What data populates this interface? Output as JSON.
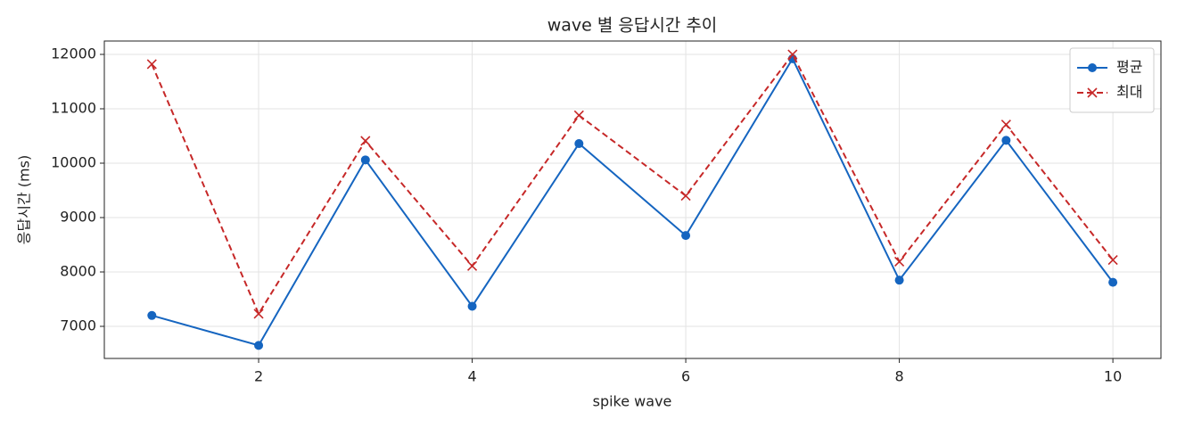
{
  "chart_data": {
    "type": "line",
    "title": "wave 별 응답시간 추이",
    "x_label": "spike wave",
    "y_label": "응답시간 (ms)",
    "x": [
      1,
      2,
      3,
      4,
      5,
      6,
      7,
      8,
      9,
      10
    ],
    "series": [
      {
        "name": "평균",
        "color": "#1565c0",
        "marker": "o",
        "linestyle": "solid",
        "values": [
          7200,
          6650,
          10060,
          7370,
          10360,
          8670,
          11920,
          7850,
          10420,
          7810
        ]
      },
      {
        "name": "최대",
        "color": "#c62828",
        "marker": "x",
        "linestyle": "dashed",
        "values": [
          11820,
          7230,
          10410,
          8110,
          10880,
          9400,
          12000,
          8190,
          10710,
          8220
        ]
      }
    ],
    "xlim": [
      0.555,
      10.45
    ],
    "ylim": [
      6410,
      12246
    ],
    "xticks": [
      2,
      4,
      6,
      8,
      10
    ],
    "yticks": [
      7000,
      8000,
      9000,
      10000,
      11000,
      12000
    ],
    "grid": true,
    "legend": "upper right"
  }
}
